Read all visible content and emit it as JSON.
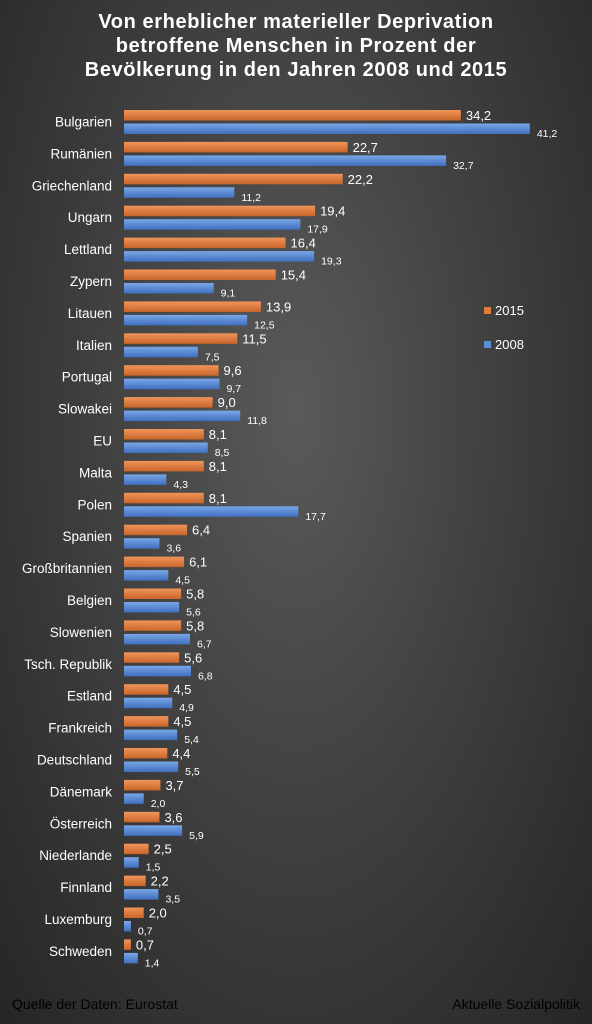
{
  "title_lines": [
    "Von erheblicher materieller Deprivation",
    "betroffene Menschen in Prozent der",
    "Bevölkerung in den Jahren 2008 und  2015"
  ],
  "source": "Quelle der Daten: Eurostat",
  "publisher": "Aktuelle Sozialpolitik",
  "chart_data": {
    "type": "bar",
    "orientation": "horizontal",
    "title": "Von erheblicher materieller Deprivation betroffene Menschen in Prozent der Bevölkerung in den Jahren 2008 und  2015",
    "categories": [
      "Bulgarien",
      "Rumänien",
      "Griechenland",
      "Ungarn",
      "Lettland",
      "Zypern",
      "Litauen",
      "Italien",
      "Portugal",
      "Slowakei",
      "EU",
      "Malta",
      "Polen",
      "Spanien",
      "Großbritannien",
      "Belgien",
      "Slowenien",
      "Tsch. Republik",
      "Estland",
      "Frankreich",
      "Deutschland",
      "Dänemark",
      "Österreich",
      "Niederlande",
      "Finnland",
      "Luxemburg",
      "Schweden"
    ],
    "series": [
      {
        "name": "2015",
        "color": "#e07b39",
        "values": [
          34.2,
          22.7,
          22.2,
          19.4,
          16.4,
          15.4,
          13.9,
          11.5,
          9.6,
          9.0,
          8.1,
          8.1,
          8.1,
          6.4,
          6.1,
          5.8,
          5.8,
          5.6,
          4.5,
          4.5,
          4.4,
          3.7,
          3.6,
          2.5,
          2.2,
          2.0,
          0.7
        ],
        "labels": [
          "34,2",
          "22,7",
          "22,2",
          "19,4",
          "16,4",
          "15,4",
          "13,9",
          "11,5",
          "9,6",
          "9,0",
          "8,1",
          "8,1",
          "8,1",
          "6,4",
          "6,1",
          "5,8",
          "5,8",
          "5,6",
          "4,5",
          "4,5",
          "4,4",
          "3,7",
          "3,6",
          "2,5",
          "2,2",
          "2,0",
          "0,7"
        ]
      },
      {
        "name": "2008",
        "color": "#5b8fd6",
        "values": [
          41.2,
          32.7,
          11.2,
          17.9,
          19.3,
          9.1,
          12.5,
          7.5,
          9.7,
          11.8,
          8.5,
          4.3,
          17.7,
          3.6,
          4.5,
          5.6,
          6.7,
          6.8,
          4.9,
          5.4,
          5.5,
          2.0,
          5.9,
          1.5,
          3.5,
          0.7,
          1.4
        ],
        "labels": [
          "41,2",
          "32,7",
          "11,2",
          "17,9",
          "19,3",
          "9,1",
          "12,5",
          "7,5",
          "9,7",
          "11,8",
          "8,5",
          "4,3",
          "17,7",
          "3,6",
          "4,5",
          "5,6",
          "6,7",
          "6,8",
          "4,9",
          "5,4",
          "5,5",
          "2,0",
          "5,9",
          "1,5",
          "3,5",
          "0,7",
          "1,4"
        ]
      }
    ],
    "legend_position": "right",
    "grid": false
  }
}
